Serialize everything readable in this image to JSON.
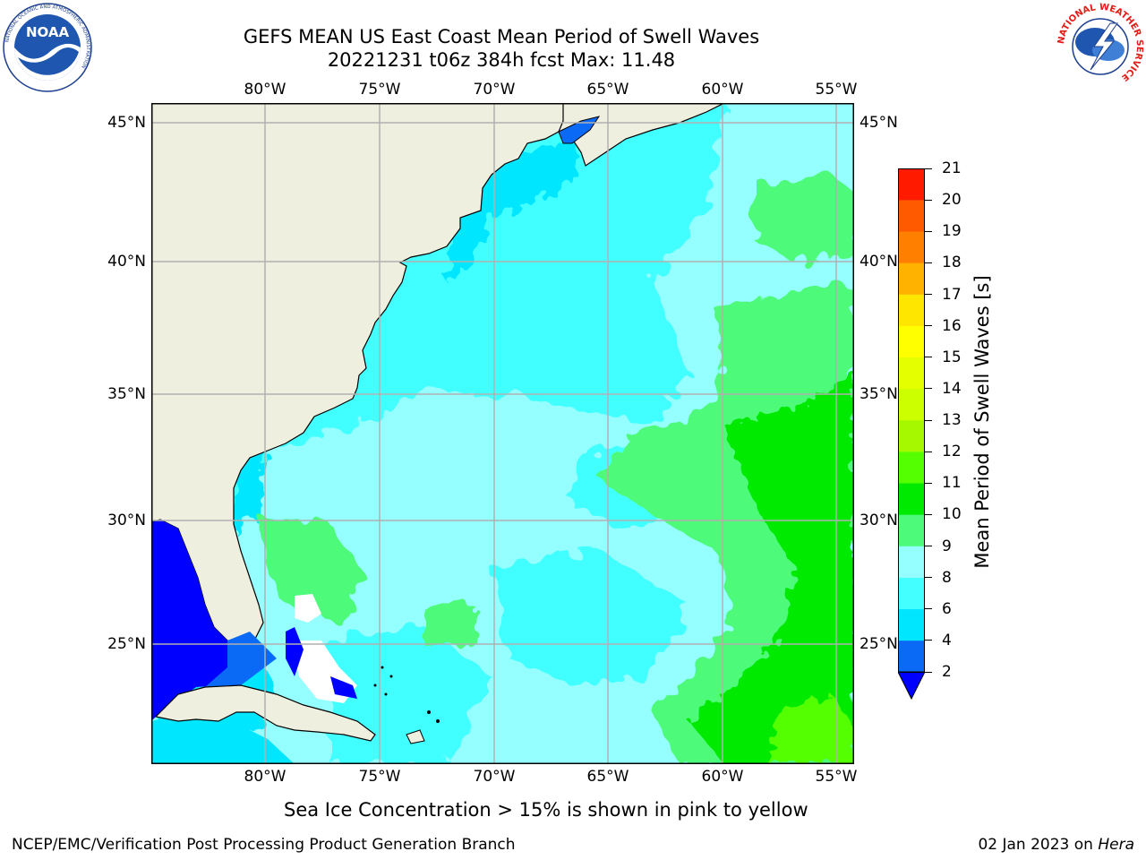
{
  "title_line1": "GEFS MEAN US East Coast Mean Period of Swell Waves",
  "title_line2": "20221231 t06z 384h fcst   Max: 11.48",
  "longitudes": [
    "80°W",
    "75°W",
    "70°W",
    "65°W",
    "60°W",
    "55°W"
  ],
  "latitudes": [
    "45°N",
    "40°N",
    "35°N",
    "30°N",
    "25°N"
  ],
  "colorbar": {
    "label": "Mean Period of Swell Waves [s]",
    "ticks": [
      "2",
      "4",
      "6",
      "8",
      "9",
      "10",
      "11",
      "12",
      "13",
      "14",
      "15",
      "16",
      "17",
      "18",
      "19",
      "20",
      "21"
    ],
    "colors": [
      "#0a6af5",
      "#00e6ff",
      "#43ffff",
      "#95ffff",
      "#4dfa7a",
      "#00ea00",
      "#53ff00",
      "#a6f800",
      "#ccff00",
      "#e3ff00",
      "#ffff00",
      "#ffe600",
      "#ffb300",
      "#ff8000",
      "#ff5a00",
      "#ff1a00"
    ],
    "under_color": "#0000ff"
  },
  "map_colors": {
    "land": "#efefdf",
    "land_border": "#000000",
    "grid": "#b0b0b0",
    "gulf": "#0000ff",
    "gulf_edge": "#0a6af5"
  },
  "note": "Sea Ice Concentration > 15% is shown in pink to yellow",
  "credit": "NCEP/EMC/Verification Post Processing Product Generation Branch",
  "date": {
    "text": "02 Jan 2023 on",
    "host": "Hera"
  },
  "logos": {
    "noaa": {
      "text": "NOAA",
      "ring_text": "NATIONAL OCEANIC AND ATMOSPHERIC ADMINISTRATION"
    },
    "nws": {
      "ring_text": "NATIONAL WEATHER SERVICE"
    }
  }
}
